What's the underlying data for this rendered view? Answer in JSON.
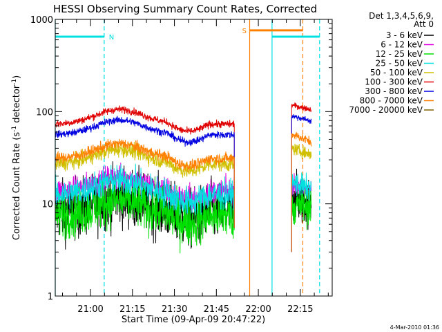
{
  "chart_data": {
    "type": "line",
    "title": "HESSI Observing Summary Count Rates, Corrected",
    "xlabel": "Start Time (09-Apr-09 20:47:22)",
    "ylabel_main": "Corrected Count Rate (s",
    "ylabel_sup1": "-1",
    "ylabel_mid": " detector",
    "ylabel_sup2": "-1",
    "ylabel_end": ")",
    "y_scale": "log",
    "ylim": [
      1,
      1000
    ],
    "xlim_minutes": [
      0,
      99
    ],
    "x_tick_labels": [
      {
        "minute": 12.6,
        "label": "21:00"
      },
      {
        "minute": 27.6,
        "label": "21:15"
      },
      {
        "minute": 42.6,
        "label": "21:30"
      },
      {
        "minute": 57.6,
        "label": "21:45"
      },
      {
        "minute": 72.6,
        "label": "22:00"
      },
      {
        "minute": 87.6,
        "label": "22:15"
      }
    ],
    "y_tick_labels": [
      {
        "value": 1,
        "label": "1"
      },
      {
        "value": 10,
        "label": "10"
      },
      {
        "value": 100,
        "label": "100"
      },
      {
        "value": 1000,
        "label": "1000"
      }
    ],
    "legend": {
      "header1": "Det 1,3,4,5,6,9,",
      "header2": "Att 0",
      "position": "right"
    },
    "series": [
      {
        "name": "3 - 6 keV",
        "color": "#000000",
        "base": 8.2,
        "noise": 0.16,
        "after_gap_start": 12,
        "after_gap_end": 10
      },
      {
        "name": "6 - 12 keV",
        "color": "#e000e0",
        "base": 13.5,
        "noise": 0.07,
        "after_gap_start": 16,
        "after_gap_end": 14
      },
      {
        "name": "12 - 25 keV",
        "color": "#00e000",
        "base": 7.5,
        "noise": 0.13,
        "after_gap_start": 9.5,
        "after_gap_end": 9.5
      },
      {
        "name": "25 - 50 keV",
        "color": "#00e0e0",
        "base": 12.5,
        "noise": 0.08,
        "after_gap_start": 17,
        "after_gap_end": 14.5
      },
      {
        "name": "50 - 100 keV",
        "color": "#d0c000",
        "base": 27,
        "noise": 0.04,
        "after_gap_start": 40,
        "after_gap_end": 34
      },
      {
        "name": "100 - 300 keV",
        "color": "#e00000",
        "base": 73,
        "noise": 0.02,
        "after_gap_start": 118,
        "after_gap_end": 105
      },
      {
        "name": "300 - 800 keV",
        "color": "#0000e0",
        "base": 56,
        "noise": 0.02,
        "after_gap_start": 90,
        "after_gap_end": 79
      },
      {
        "name": "800 - 7000 keV",
        "color": "#ff8000",
        "base": 31,
        "noise": 0.03,
        "after_gap_start": 57,
        "after_gap_end": 47
      },
      {
        "name": "7000 - 20000 keV",
        "color": "#806000",
        "base": 0,
        "noise": 0,
        "after_gap_start": 0,
        "after_gap_end": 0
      }
    ],
    "data_segments_minutes": [
      [
        0,
        64
      ],
      [
        84.5,
        91.5
      ]
    ],
    "bump_center_minute": 23,
    "bump_width_minutes": 12,
    "bump_amplitude": 0.16,
    "dip_start_minute": 40,
    "dip_end_minute": 55,
    "dip_amplitude": -0.08,
    "flag_bars": [
      {
        "label": "N",
        "color": "#00e0e0",
        "value": 650,
        "start_minute": 0,
        "end_minute": 17.5,
        "label_minute": 19.2
      },
      {
        "label": "",
        "color": "#00e0e0",
        "value": 650,
        "start_minute": 77.5,
        "end_minute": 94.5,
        "label_minute": null
      },
      {
        "label": "S",
        "color": "#ff8000",
        "value": 760,
        "start_minute": 69.5,
        "end_minute": 88.5,
        "label_minute": 66.8
      }
    ],
    "vertical_markers": [
      {
        "color": "#00e0e0",
        "minute": 0,
        "style": "solid"
      },
      {
        "color": "#00e0e0",
        "minute": 17.5,
        "style": "dashed"
      },
      {
        "color": "#ff8000",
        "minute": 69.5,
        "style": "solid"
      },
      {
        "color": "#00e0e0",
        "minute": 77.5,
        "style": "solid"
      },
      {
        "color": "#ff8000",
        "minute": 88.5,
        "style": "dashed"
      },
      {
        "color": "#00e0e0",
        "minute": 94.5,
        "style": "dashed"
      }
    ]
  },
  "footer_timestamp": "4-Mar-2010 01:36"
}
